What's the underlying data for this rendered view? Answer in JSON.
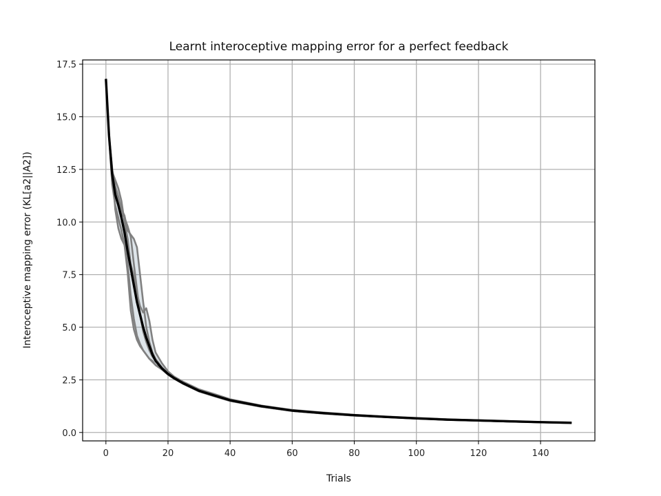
{
  "chart_data": {
    "type": "line",
    "title": "Learnt interoceptive mapping error for a perfect feedback",
    "xlabel": "Trials",
    "ylabel": "Interoceptive mapping error (KL[a2||A2])",
    "xlim": [
      -7.5,
      157.5
    ],
    "ylim": [
      -0.4,
      17.7
    ],
    "xticks": [
      0,
      20,
      40,
      60,
      80,
      100,
      120,
      140
    ],
    "yticks": [
      0.0,
      2.5,
      5.0,
      7.5,
      10.0,
      12.5,
      15.0,
      17.5
    ],
    "xtick_labels": [
      "0",
      "20",
      "40",
      "60",
      "80",
      "100",
      "120",
      "140"
    ],
    "ytick_labels": [
      "0.0",
      "2.5",
      "5.0",
      "7.5",
      "10.0",
      "12.5",
      "15.0",
      "17.5"
    ],
    "grid": true,
    "legend": "none",
    "colors": {
      "runs": "#808080",
      "mean": "#000000",
      "band": "#4a6d8c"
    },
    "series": [
      {
        "role": "run",
        "x": [
          0,
          1,
          2,
          3,
          4,
          5,
          6,
          7,
          8,
          9,
          10,
          11,
          12,
          13,
          14,
          15,
          16,
          18,
          20,
          22,
          25,
          30,
          35,
          40,
          50,
          60,
          70,
          80,
          90,
          100,
          110,
          120,
          130,
          140,
          150
        ],
        "values": [
          16.8,
          14.1,
          12.6,
          10.6,
          9.7,
          9.2,
          8.9,
          7.6,
          5.8,
          4.9,
          4.4,
          4.1,
          3.9,
          3.7,
          3.5,
          3.4,
          3.2,
          3.0,
          2.75,
          2.55,
          2.3,
          1.95,
          1.72,
          1.5,
          1.22,
          1.02,
          0.9,
          0.8,
          0.73,
          0.66,
          0.6,
          0.56,
          0.52,
          0.48,
          0.44
        ]
      },
      {
        "role": "run",
        "x": [
          0,
          1,
          2,
          3,
          4,
          5,
          6,
          7,
          8,
          9,
          10,
          11,
          12,
          13,
          14,
          15,
          16,
          18,
          20,
          22,
          25,
          30,
          35,
          40,
          50,
          60,
          70,
          80,
          90,
          100,
          110,
          120,
          130,
          140,
          150
        ],
        "values": [
          16.8,
          14.1,
          11.8,
          10.8,
          10.2,
          9.6,
          8.9,
          8.0,
          6.5,
          5.4,
          4.6,
          4.2,
          3.9,
          3.7,
          3.5,
          3.35,
          3.2,
          3.0,
          2.75,
          2.55,
          2.3,
          1.95,
          1.72,
          1.5,
          1.22,
          1.02,
          0.9,
          0.8,
          0.73,
          0.66,
          0.6,
          0.56,
          0.52,
          0.48,
          0.45
        ]
      },
      {
        "role": "run",
        "x": [
          0,
          1,
          2,
          3,
          4,
          5,
          6,
          7,
          8,
          9,
          10,
          11,
          12,
          13,
          14,
          15,
          16,
          18,
          20,
          22,
          25,
          30,
          35,
          40,
          50,
          60,
          70,
          80,
          90,
          100,
          110,
          120,
          130,
          140,
          150
        ],
        "values": [
          16.8,
          14.1,
          12.5,
          11.7,
          11.2,
          10.6,
          10.3,
          9.6,
          9.4,
          9.2,
          8.8,
          7.5,
          6.2,
          5.0,
          4.3,
          3.8,
          3.5,
          3.1,
          2.8,
          2.6,
          2.35,
          2.0,
          1.78,
          1.55,
          1.26,
          1.05,
          0.93,
          0.83,
          0.75,
          0.68,
          0.62,
          0.57,
          0.53,
          0.49,
          0.46
        ]
      },
      {
        "role": "run",
        "x": [
          0,
          1,
          2,
          3,
          4,
          5,
          6,
          7,
          8,
          9,
          10,
          11,
          12,
          13,
          14,
          15,
          16,
          18,
          20,
          22,
          25,
          30,
          35,
          40,
          50,
          60,
          70,
          80,
          90,
          100,
          110,
          120,
          130,
          140,
          150
        ],
        "values": [
          16.8,
          14.1,
          12.4,
          12.0,
          11.6,
          11.0,
          10.0,
          9.2,
          8.0,
          7.4,
          6.6,
          6.0,
          5.7,
          5.9,
          5.3,
          4.4,
          3.8,
          3.3,
          2.9,
          2.65,
          2.4,
          2.05,
          1.82,
          1.58,
          1.28,
          1.07,
          0.95,
          0.84,
          0.76,
          0.69,
          0.63,
          0.58,
          0.54,
          0.5,
          0.47
        ]
      },
      {
        "role": "run",
        "x": [
          0,
          1,
          2,
          3,
          4,
          5,
          6,
          7,
          8,
          9,
          10,
          11,
          12,
          13,
          14,
          15,
          16,
          18,
          20,
          22,
          25,
          30,
          35,
          40,
          50,
          60,
          70,
          80,
          90,
          100,
          110,
          120,
          130,
          140,
          150
        ],
        "values": [
          16.8,
          14.1,
          12.4,
          11.5,
          10.9,
          10.4,
          10.2,
          9.8,
          9.3,
          8.0,
          6.8,
          5.6,
          4.8,
          4.3,
          3.9,
          3.6,
          3.4,
          3.1,
          2.8,
          2.6,
          2.35,
          2.0,
          1.75,
          1.52,
          1.24,
          1.04,
          0.92,
          0.82,
          0.74,
          0.67,
          0.61,
          0.56,
          0.52,
          0.49,
          0.46
        ]
      },
      {
        "role": "mean",
        "x": [
          0,
          1,
          2,
          3,
          4,
          5,
          6,
          7,
          8,
          9,
          10,
          11,
          12,
          13,
          14,
          15,
          16,
          18,
          20,
          22,
          25,
          30,
          35,
          40,
          50,
          60,
          70,
          80,
          90,
          100,
          110,
          120,
          130,
          140,
          150
        ],
        "values": [
          16.8,
          14.1,
          12.3,
          11.3,
          10.8,
          10.2,
          9.5,
          8.6,
          7.8,
          7.0,
          6.2,
          5.6,
          5.0,
          4.5,
          4.1,
          3.7,
          3.4,
          3.05,
          2.78,
          2.58,
          2.33,
          1.98,
          1.75,
          1.53,
          1.25,
          1.04,
          0.92,
          0.82,
          0.74,
          0.67,
          0.61,
          0.57,
          0.53,
          0.49,
          0.46
        ]
      }
    ]
  }
}
